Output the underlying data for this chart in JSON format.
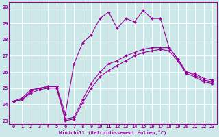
{
  "bg_color": "#cce8e8",
  "line_color": "#990099",
  "grid_color": "#ffffff",
  "xlim_min": -0.5,
  "xlim_max": 23.5,
  "ylim_min": 22.8,
  "ylim_max": 30.3,
  "yticks": [
    23,
    24,
    25,
    26,
    27,
    28,
    29,
    30
  ],
  "xticks": [
    0,
    1,
    2,
    3,
    4,
    5,
    6,
    7,
    8,
    9,
    10,
    11,
    12,
    13,
    14,
    15,
    16,
    17,
    18,
    19,
    20,
    21,
    22,
    23
  ],
  "xlabel": "Windchill (Refroidissement éolien,°C)",
  "series": [
    [
      24.2,
      24.4,
      24.9,
      25.0,
      25.1,
      25.1,
      23.4,
      26.5,
      27.8,
      28.3,
      29.3,
      29.7,
      28.7,
      29.3,
      29.1,
      29.8,
      29.3,
      29.3,
      27.5,
      26.8,
      26.0,
      25.9,
      25.6,
      25.5
    ],
    [
      24.2,
      24.3,
      24.8,
      25.0,
      25.1,
      25.1,
      23.1,
      23.2,
      24.3,
      25.3,
      26.0,
      26.5,
      26.7,
      27.0,
      27.2,
      27.4,
      27.5,
      27.5,
      27.5,
      26.8,
      26.0,
      25.8,
      25.5,
      25.4
    ],
    [
      24.2,
      24.3,
      24.7,
      24.9,
      25.0,
      25.0,
      23.0,
      23.1,
      24.1,
      25.0,
      25.7,
      26.1,
      26.4,
      26.7,
      27.0,
      27.2,
      27.3,
      27.4,
      27.3,
      26.7,
      25.9,
      25.7,
      25.4,
      25.3
    ]
  ]
}
